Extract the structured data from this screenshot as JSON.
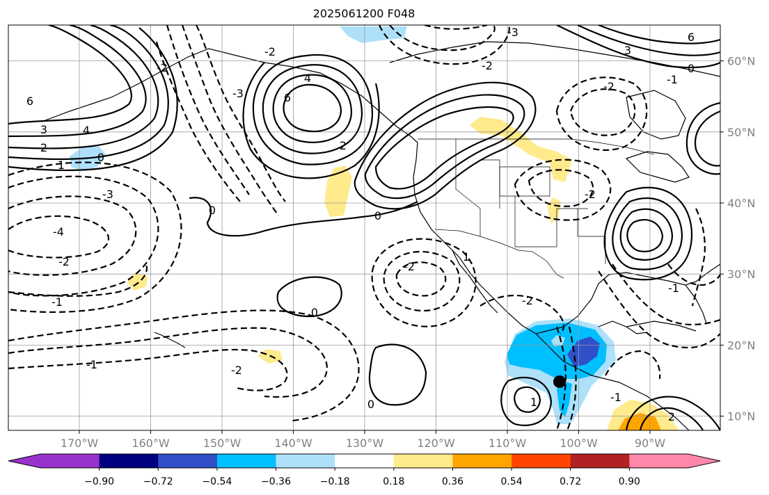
{
  "title": "2025061200 F048",
  "map": {
    "lon_labels": [
      "170°W",
      "160°W",
      "150°W",
      "140°W",
      "130°W",
      "120°W",
      "110°W",
      "100°W",
      "90°W"
    ],
    "lat_labels": [
      "60°N",
      "50°N",
      "40°N",
      "30°N",
      "20°N",
      "10°N"
    ],
    "marker": {
      "lon": -102.2,
      "lat": 14.8,
      "color": "#000000"
    },
    "contour_labels_positive": [
      "6",
      "4",
      "3",
      "2",
      "1",
      "0",
      "0",
      "0",
      "0",
      "0",
      "6",
      "4",
      "2",
      "6",
      "3",
      "0",
      "1",
      "1",
      "2"
    ],
    "contour_labels_negative": [
      "-2",
      "-4",
      "-3",
      "-2",
      "-1",
      "-1",
      "-2",
      "-2",
      "-3",
      "-2",
      "-3",
      "-2",
      "-2",
      "-2",
      "-1",
      "-1",
      "-2",
      "-1"
    ],
    "contour_style": {
      "positive": "solid",
      "negative": "dashed",
      "color": "#000000"
    }
  },
  "colorbar": {
    "tick_labels": [
      "−0.90",
      "−0.72",
      "−0.54",
      "−0.36",
      "−0.18",
      "0.18",
      "0.36",
      "0.54",
      "0.72",
      "0.90"
    ],
    "colors": [
      "#9932CC",
      "#000080",
      "#3050C8",
      "#00BFFF",
      "#AEE0FA",
      "#FFFFFF",
      "#FFEA8C",
      "#FFA500",
      "#FF4500",
      "#B22222",
      "#FF88AA"
    ],
    "extend": "both"
  }
}
